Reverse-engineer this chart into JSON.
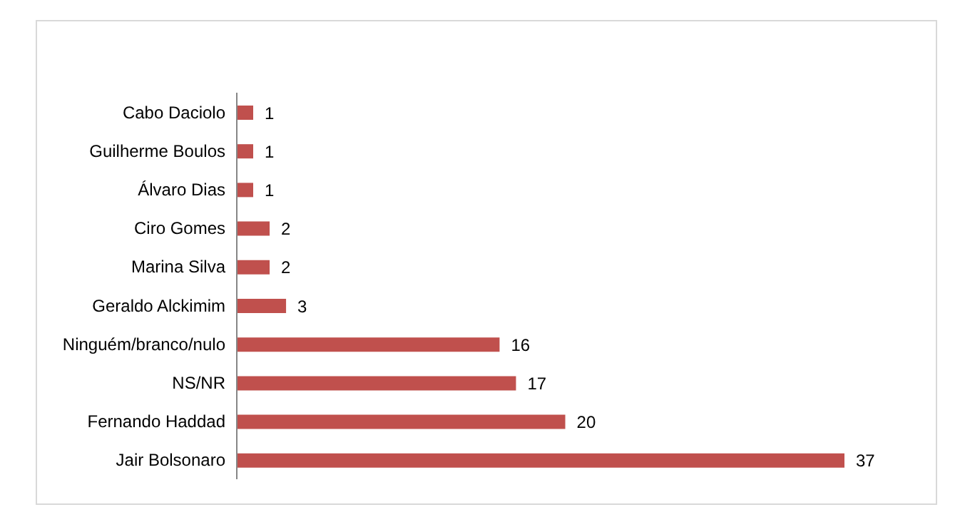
{
  "chart_data": {
    "type": "bar",
    "orientation": "horizontal",
    "categories": [
      "Cabo Daciolo",
      "Guilherme Boulos",
      "Álvaro Dias",
      "Ciro Gomes",
      "Marina Silva",
      "Geraldo Alckimim",
      "Ninguém/branco/nulo",
      "NS/NR",
      "Fernando Haddad",
      "Jair Bolsonaro"
    ],
    "values": [
      1,
      1,
      1,
      2,
      2,
      3,
      16,
      17,
      20,
      37
    ],
    "color": "#c0504d",
    "data_labels": true
  }
}
